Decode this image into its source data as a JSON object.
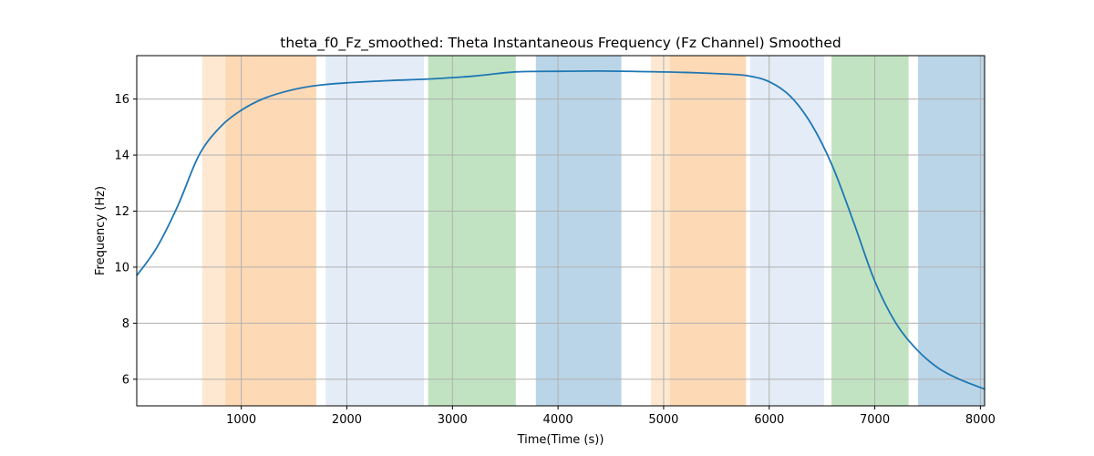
{
  "chart_data": {
    "type": "line",
    "title": "theta_f0_Fz_smoothed: Theta Instantaneous Frequency (Fz Channel) Smoothed",
    "xlabel": "Time(Time (s))",
    "ylabel": "Frequency (Hz)",
    "xlim": [
      10,
      8040
    ],
    "ylim": [
      5.05,
      17.55
    ],
    "xticks": [
      1000,
      2000,
      3000,
      4000,
      5000,
      6000,
      7000,
      8000
    ],
    "yticks": [
      6,
      8,
      10,
      12,
      14,
      16
    ],
    "grid": true,
    "line_color": "#1f77b4",
    "series": [
      {
        "x": [
          10,
          200,
          400,
          600,
          800,
          1000,
          1200,
          1400,
          1600,
          1800,
          2000,
          2400,
          2800,
          3200,
          3600,
          4000,
          4400,
          4800,
          5200,
          5600,
          5800,
          6000,
          6200,
          6400,
          6600,
          6800,
          7000,
          7200,
          7400,
          7600,
          7800,
          8040
        ],
        "y": [
          9.7,
          10.7,
          12.2,
          14.0,
          15.0,
          15.6,
          16.0,
          16.25,
          16.42,
          16.52,
          16.58,
          16.66,
          16.72,
          16.82,
          16.97,
          16.99,
          17.0,
          16.98,
          16.95,
          16.89,
          16.83,
          16.62,
          16.1,
          15.1,
          13.6,
          11.6,
          9.5,
          8.0,
          7.05,
          6.4,
          6.0,
          5.65
        ]
      }
    ],
    "bands": [
      {
        "start": 630,
        "end": 860,
        "color": "#ffe8d1"
      },
      {
        "start": 850,
        "end": 1710,
        "color": "#fed9b5"
      },
      {
        "start": 1800,
        "end": 2730,
        "color": "#e4ecf7"
      },
      {
        "start": 2770,
        "end": 3600,
        "color": "#c1e3c1"
      },
      {
        "start": 3790,
        "end": 4600,
        "color": "#bbd5e8"
      },
      {
        "start": 4880,
        "end": 5060,
        "color": "#ffe8d1"
      },
      {
        "start": 5060,
        "end": 5780,
        "color": "#fed9b5"
      },
      {
        "start": 5820,
        "end": 6520,
        "color": "#e4ecf7"
      },
      {
        "start": 6590,
        "end": 7320,
        "color": "#c1e3c1"
      },
      {
        "start": 7410,
        "end": 8040,
        "color": "#bbd5e8"
      }
    ]
  }
}
